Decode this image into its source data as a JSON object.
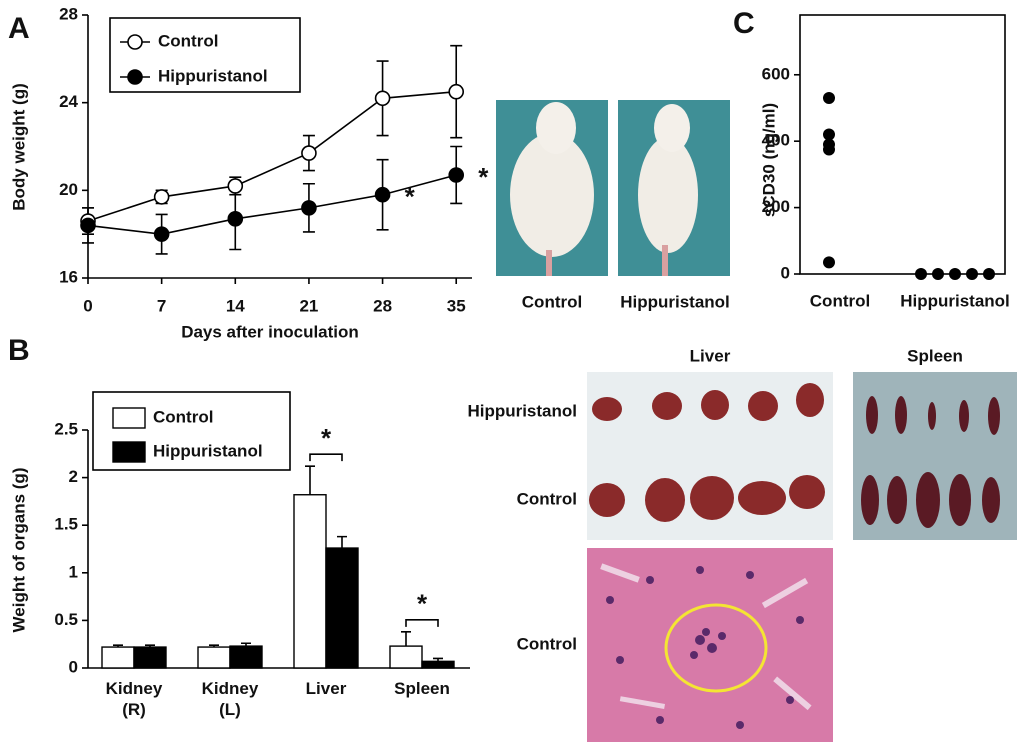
{
  "panel_labels": [
    "A",
    "B",
    "C"
  ],
  "chart_data": [
    {
      "type": "line",
      "xlabel": "Days after inoculation",
      "ylabel": "Body weight (g)",
      "x": [
        0,
        7,
        14,
        21,
        28,
        35
      ],
      "xlim": [
        0,
        36.5
      ],
      "xticks": [
        0,
        7,
        14,
        21,
        28,
        35
      ],
      "ylim": [
        16,
        28
      ],
      "yticks": [
        16,
        20,
        24,
        28
      ],
      "legend": "upper left",
      "series": [
        {
          "name": "Control",
          "color": "#ffffff",
          "values": [
            18.6,
            19.7,
            20.2,
            21.7,
            24.2,
            24.5
          ],
          "errors": [
            0.6,
            0.3,
            0.4,
            0.8,
            1.7,
            2.1
          ]
        },
        {
          "name": "Hippuristanol",
          "color": "#000000",
          "values": [
            18.4,
            18.0,
            18.7,
            19.2,
            19.8,
            20.7
          ],
          "errors": [
            0.8,
            0.9,
            1.4,
            1.1,
            1.6,
            1.3
          ]
        }
      ],
      "annotations": [
        "*",
        "*"
      ]
    },
    {
      "type": "bar",
      "ylabel": "Weight of organs (g)",
      "categories": [
        "Kidney (R)",
        "Kidney (L)",
        "Liver",
        "Spleen"
      ],
      "ylim": [
        0,
        2.5
      ],
      "yticks": [
        0,
        0.5,
        1,
        1.5,
        2,
        2.5
      ],
      "legend": "upper left",
      "series": [
        {
          "name": "Control",
          "color": "#ffffff",
          "values": [
            0.22,
            0.22,
            1.82,
            0.23
          ],
          "errors": [
            0.02,
            0.02,
            0.3,
            0.15
          ]
        },
        {
          "name": "Hippuristanol",
          "color": "#000000",
          "values": [
            0.22,
            0.23,
            1.26,
            0.07
          ],
          "errors": [
            0.02,
            0.03,
            0.12,
            0.03
          ]
        }
      ],
      "annotations": [
        "*",
        "*"
      ]
    },
    {
      "type": "scatter",
      "ylabel": "sCD30 (ng/ml)",
      "categories": [
        "Control",
        "Hippuristanol"
      ],
      "ylim": [
        0,
        780
      ],
      "yticks": [
        0,
        200,
        400,
        600
      ],
      "series": [
        {
          "name": "Control",
          "color": "#000000",
          "values": [
            530,
            420,
            390,
            375,
            35
          ]
        },
        {
          "name": "Hippuristanol",
          "color": "#000000",
          "values": [
            0,
            0,
            0,
            0,
            0
          ]
        }
      ]
    }
  ],
  "photos": {
    "mice": [
      "Control",
      "Hippuristanol"
    ],
    "organ_headers": [
      "Liver",
      "Spleen"
    ],
    "row_labels": [
      "Hippuristanol",
      "Control",
      "Control"
    ]
  }
}
